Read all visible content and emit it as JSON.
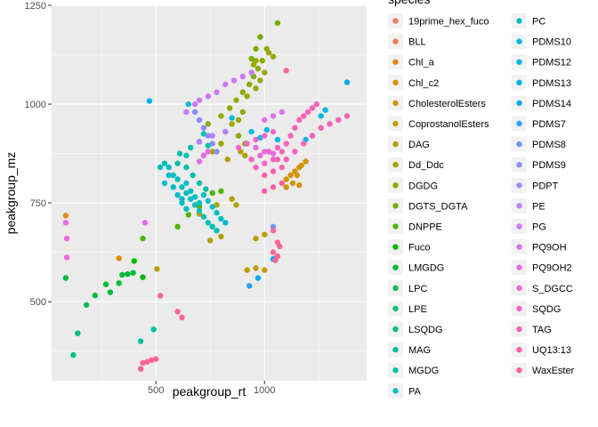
{
  "chart_data": {
    "type": "scatter",
    "xlabel": "peakgroup_rt",
    "ylabel": "peakgroup_mz",
    "xlim": [
      20,
      1470
    ],
    "ylim": [
      300,
      1250
    ],
    "x_ticks": [
      500,
      1000
    ],
    "x_tick_labels": [
      "500",
      "1000"
    ],
    "y_ticks": [
      500,
      750,
      1000,
      1250
    ],
    "y_tick_labels": [
      "500",
      "750",
      "1000",
      "1250"
    ],
    "grid": true,
    "legend_title": "species",
    "legend_placement": "right",
    "series": [
      {
        "name": "19prime_hex_fuco",
        "color": "#F8766D",
        "points": []
      },
      {
        "name": "BLL",
        "color": "#F07E54",
        "points": []
      },
      {
        "name": "Chl_a",
        "color": "#E7861B",
        "points": [
          [
            85,
            718
          ]
        ]
      },
      {
        "name": "Chl_c2",
        "color": "#DB8E00",
        "points": [
          [
            330,
            610
          ]
        ]
      },
      {
        "name": "CholesterolEsters",
        "color": "#CF9400",
        "points": [
          [
            1080,
            800
          ],
          [
            1100,
            810
          ],
          [
            1120,
            820
          ],
          [
            1140,
            830
          ],
          [
            1160,
            840
          ],
          [
            1100,
            790
          ],
          [
            1130,
            800
          ],
          [
            1150,
            820
          ],
          [
            1170,
            845
          ],
          [
            1190,
            855
          ],
          [
            1160,
            795
          ]
        ]
      },
      {
        "name": "CoprostanolEsters",
        "color": "#C09B00",
        "points": [
          [
            920,
            580
          ],
          [
            960,
            585
          ],
          [
            1000,
            580
          ],
          [
            960,
            660
          ],
          [
            1000,
            670
          ]
        ]
      },
      {
        "name": "DAG",
        "color": "#B0A100",
        "points": [
          [
            505,
            583
          ],
          [
            700,
            722
          ],
          [
            750,
            655
          ],
          [
            800,
            665
          ],
          [
            780,
            745
          ],
          [
            850,
            760
          ],
          [
            870,
            745
          ],
          [
            830,
            860
          ],
          [
            890,
            880
          ],
          [
            910,
            870
          ]
        ]
      },
      {
        "name": "Dd_Ddc",
        "color": "#9EA700",
        "points": [
          [
            720,
            870
          ],
          [
            760,
            880
          ],
          [
            800,
            900
          ],
          [
            820,
            930
          ],
          [
            850,
            950
          ],
          [
            880,
            960
          ],
          [
            900,
            980
          ],
          [
            920,
            1020
          ],
          [
            960,
            1040
          ],
          [
            980,
            1060
          ],
          [
            1000,
            1080
          ],
          [
            950,
            1100
          ],
          [
            960,
            1110
          ],
          [
            1020,
            1130
          ],
          [
            1040,
            1120
          ]
        ]
      },
      {
        "name": "DGDG",
        "color": "#88AC00",
        "points": [
          [
            740,
            950
          ],
          [
            800,
            970
          ],
          [
            840,
            990
          ],
          [
            870,
            1010
          ],
          [
            900,
            1030
          ],
          [
            930,
            1050
          ],
          [
            950,
            1070
          ],
          [
            970,
            1090
          ],
          [
            990,
            1110
          ],
          [
            1010,
            1140
          ],
          [
            880,
            920
          ],
          [
            910,
            900
          ]
        ]
      },
      {
        "name": "DGTS_DGTA",
        "color": "#6FB000",
        "points": [
          [
            940,
            1115
          ],
          [
            960,
            1140
          ],
          [
            980,
            1170
          ],
          [
            1060,
            1205
          ]
        ]
      },
      {
        "name": "DNPPE",
        "color": "#4FB400",
        "points": [
          [
            440,
            660
          ],
          [
            600,
            690
          ],
          [
            650,
            720
          ],
          [
            700,
            740
          ],
          [
            760,
            775
          ],
          [
            800,
            780
          ]
        ]
      },
      {
        "name": "Fuco",
        "color": "#00B700",
        "points": [
          [
            400,
            603
          ],
          [
            440,
            562
          ]
        ]
      },
      {
        "name": "LMGDG",
        "color": "#00BA38",
        "points": [
          [
            85,
            560
          ],
          [
            220,
            516
          ],
          [
            270,
            544
          ],
          [
            290,
            524
          ],
          [
            330,
            547
          ],
          [
            345,
            568
          ],
          [
            370,
            570
          ],
          [
            395,
            573
          ]
        ]
      },
      {
        "name": "LPC",
        "color": "#00BC59",
        "points": [
          [
            180,
            492
          ]
        ]
      },
      {
        "name": "LPE",
        "color": "#00BE71",
        "points": [
          [
            140,
            420
          ]
        ]
      },
      {
        "name": "LSQDG",
        "color": "#00BF86",
        "points": [
          [
            120,
            365
          ]
        ]
      },
      {
        "name": "MAG",
        "color": "#00C098",
        "points": [
          [
            430,
            400
          ]
        ]
      },
      {
        "name": "MGDG",
        "color": "#00C0AA",
        "points": [
          [
            490,
            430
          ],
          [
            600,
            850
          ],
          [
            640,
            870
          ],
          [
            660,
            890
          ],
          [
            700,
            905
          ],
          [
            720,
            925
          ],
          [
            740,
            895
          ],
          [
            610,
            875
          ],
          [
            640,
            840
          ],
          [
            670,
            820
          ],
          [
            700,
            800
          ],
          [
            730,
            785
          ]
        ]
      },
      {
        "name": "PA",
        "color": "#00BFBB",
        "points": [
          [
            520,
            840
          ],
          [
            540,
            850
          ],
          [
            560,
            840
          ],
          [
            580,
            820
          ],
          [
            600,
            810
          ],
          [
            620,
            790
          ],
          [
            640,
            775
          ],
          [
            660,
            760
          ],
          [
            680,
            745
          ],
          [
            700,
            730
          ],
          [
            720,
            715
          ],
          [
            740,
            700
          ],
          [
            760,
            690
          ],
          [
            780,
            680
          ],
          [
            620,
            750
          ],
          [
            640,
            735
          ]
        ]
      },
      {
        "name": "PC",
        "color": "#00BDCA",
        "points": [
          [
            540,
            800
          ],
          [
            560,
            820
          ],
          [
            580,
            790
          ],
          [
            600,
            770
          ],
          [
            620,
            760
          ],
          [
            640,
            800
          ],
          [
            660,
            780
          ],
          [
            680,
            765
          ],
          [
            700,
            750
          ],
          [
            720,
            770
          ],
          [
            740,
            755
          ],
          [
            760,
            740
          ],
          [
            780,
            725
          ],
          [
            800,
            710
          ],
          [
            820,
            700
          ]
        ]
      },
      {
        "name": "PDMS10",
        "color": "#00BAD9",
        "points": [
          [
            650,
            1000
          ],
          [
            850,
            965
          ],
          [
            940,
            930
          ],
          [
            980,
            915
          ],
          [
            1010,
            935
          ]
        ]
      },
      {
        "name": "PDMS12",
        "color": "#00B5E6",
        "points": [
          [
            1060,
            910
          ],
          [
            1190,
            910
          ],
          [
            1220,
            920
          ],
          [
            1260,
            970
          ],
          [
            1280,
            985
          ]
        ]
      },
      {
        "name": "PDMS13",
        "color": "#00AFF2",
        "points": [
          [
            470,
            1008
          ],
          [
            1380,
            1055
          ]
        ]
      },
      {
        "name": "PDMS14",
        "color": "#00A8FD",
        "points": [
          [
            970,
            560
          ],
          [
            1040,
            608
          ]
        ]
      },
      {
        "name": "PDMS7",
        "color": "#2C9FFF",
        "points": [
          [
            930,
            540
          ]
        ]
      },
      {
        "name": "PDMS8",
        "color": "#6996FF",
        "points": [
          [
            1040,
            690
          ]
        ]
      },
      {
        "name": "PDMS9",
        "color": "#8C8DFF",
        "points": [
          [
            680,
            980
          ],
          [
            700,
            960
          ],
          [
            720,
            940
          ],
          [
            740,
            920
          ],
          [
            760,
            900
          ],
          [
            780,
            880
          ]
        ]
      },
      {
        "name": "PDPT",
        "color": "#A686FF",
        "points": []
      },
      {
        "name": "PE",
        "color": "#BA7EFF",
        "points": [
          [
            700,
            905
          ],
          [
            760,
            920
          ],
          [
            820,
            930
          ]
        ]
      },
      {
        "name": "PG",
        "color": "#CB77FB",
        "points": [
          [
            640,
            980
          ],
          [
            680,
            1000
          ],
          [
            700,
            1010
          ],
          [
            740,
            1020
          ],
          [
            780,
            1030
          ],
          [
            820,
            1050
          ],
          [
            860,
            1060
          ],
          [
            900,
            1070
          ],
          [
            940,
            1080
          ]
        ]
      },
      {
        "name": "PQ9OH",
        "color": "#D973F1",
        "points": [
          [
            1000,
            960
          ],
          [
            1040,
            970
          ],
          [
            1080,
            980
          ]
        ]
      },
      {
        "name": "PQ9OH2",
        "color": "#E56DE6",
        "points": [
          [
            450,
            700
          ],
          [
            700,
            855
          ],
          [
            720,
            870
          ],
          [
            740,
            880
          ],
          [
            960,
            890
          ],
          [
            1000,
            880
          ],
          [
            1040,
            875
          ]
        ]
      },
      {
        "name": "S_DGCC",
        "color": "#EE69D9",
        "points": [
          [
            85,
            700
          ],
          [
            90,
            660
          ],
          [
            90,
            612
          ]
        ]
      },
      {
        "name": "SQDG",
        "color": "#F564CA",
        "points": [
          [
            880,
            890
          ],
          [
            920,
            900
          ],
          [
            960,
            910
          ],
          [
            1000,
            920
          ],
          [
            1040,
            930
          ],
          [
            940,
            860
          ],
          [
            980,
            870
          ],
          [
            1020,
            880
          ],
          [
            1060,
            890
          ],
          [
            960,
            840
          ],
          [
            1000,
            850
          ],
          [
            1040,
            860
          ]
        ]
      },
      {
        "name": "TAG",
        "color": "#FA62BA",
        "points": [
          [
            1060,
            860
          ],
          [
            1080,
            880
          ],
          [
            1100,
            900
          ],
          [
            1120,
            920
          ],
          [
            1140,
            940
          ],
          [
            1160,
            960
          ],
          [
            1180,
            970
          ],
          [
            1200,
            980
          ],
          [
            1220,
            990
          ],
          [
            1240,
            1000
          ],
          [
            1100,
            860
          ],
          [
            1140,
            880
          ],
          [
            1180,
            900
          ],
          [
            1220,
            920
          ],
          [
            1260,
            940
          ],
          [
            1300,
            950
          ],
          [
            1340,
            960
          ],
          [
            1380,
            970
          ]
        ]
      },
      {
        "name": "UQ13:13",
        "color": "#FD61A8",
        "points": [
          [
            1000,
            820
          ],
          [
            1040,
            830
          ],
          [
            1080,
            840
          ],
          [
            1000,
            780
          ],
          [
            1040,
            790
          ],
          [
            1080,
            800
          ],
          [
            1100,
            1085
          ]
        ]
      },
      {
        "name": "WaxEster",
        "color": "#FE6395",
        "points": [
          [
            430,
            330
          ],
          [
            440,
            345
          ],
          [
            460,
            348
          ],
          [
            480,
            352
          ],
          [
            500,
            355
          ],
          [
            520,
            515
          ],
          [
            600,
            475
          ],
          [
            620,
            460
          ],
          [
            1040,
            680
          ],
          [
            1060,
            650
          ],
          [
            1070,
            640
          ],
          [
            1040,
            625
          ],
          [
            1050,
            605
          ],
          [
            1060,
            615
          ]
        ]
      }
    ]
  }
}
